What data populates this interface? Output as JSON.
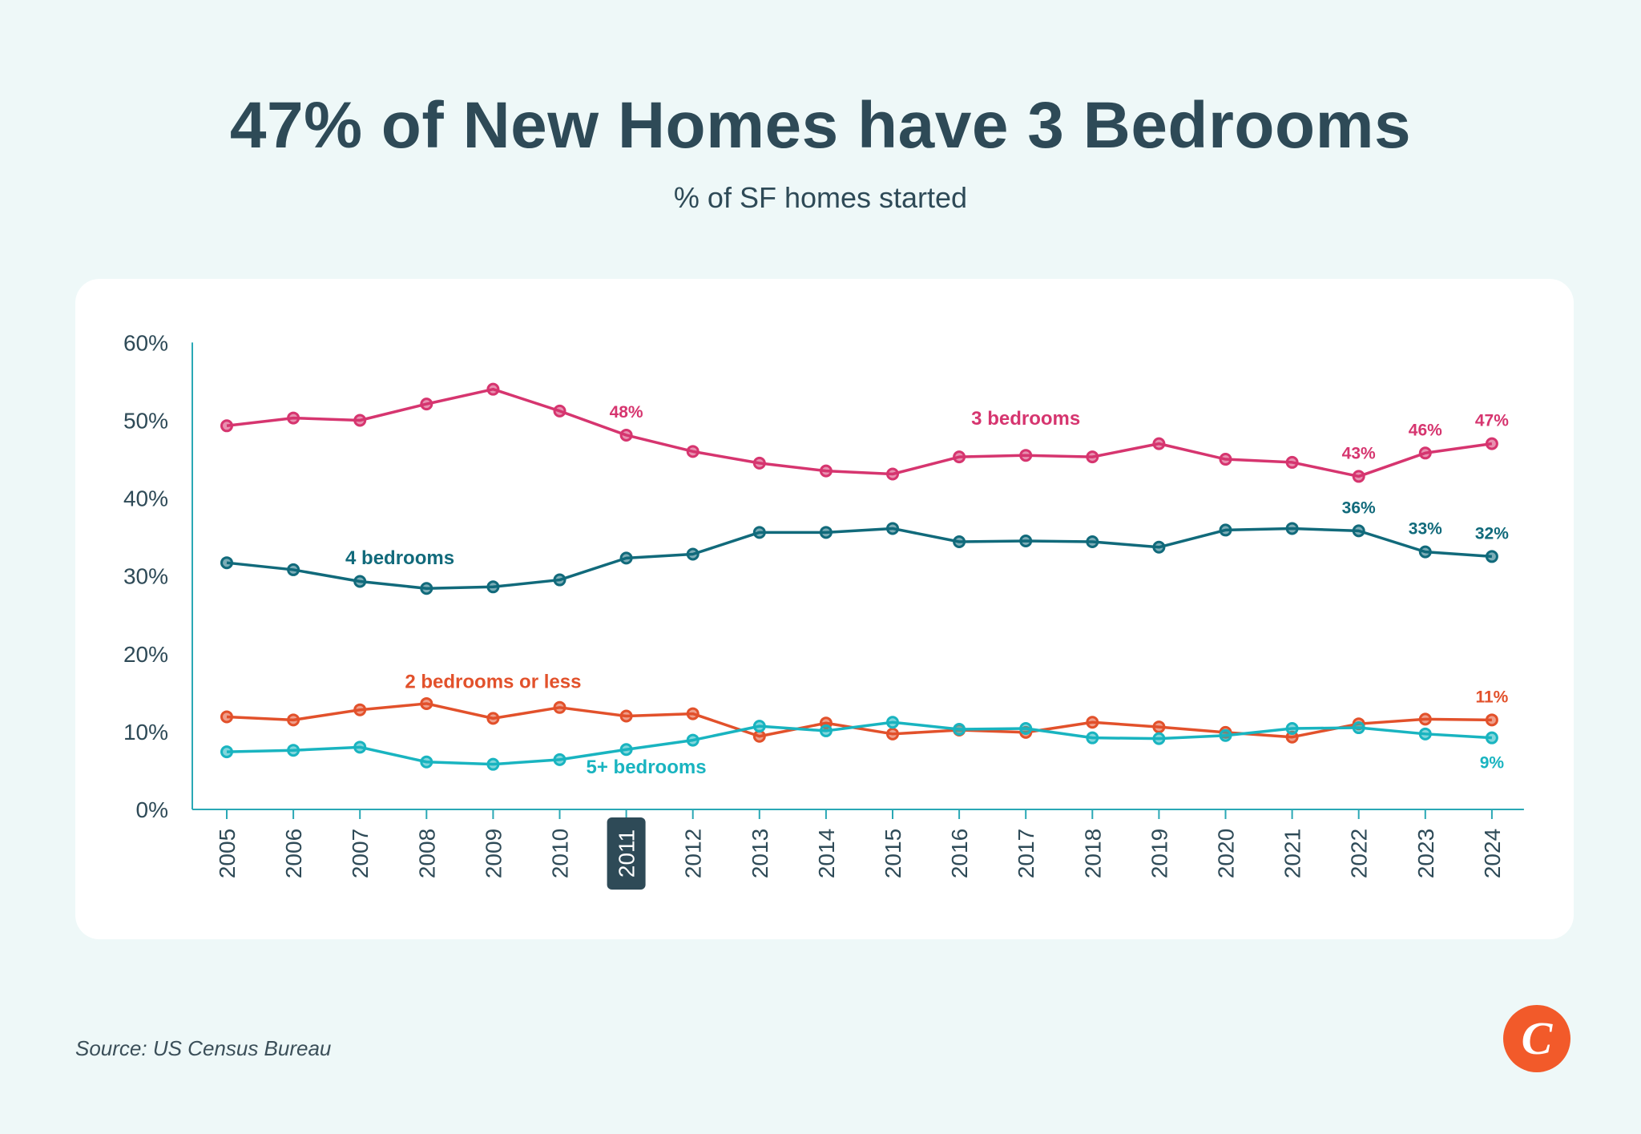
{
  "header": {
    "title": "47% of New Homes have 3 Bedrooms",
    "subtitle": "% of SF homes started"
  },
  "footer": {
    "source": "Source: US Census Bureau",
    "logo_letter": "C"
  },
  "colors": {
    "background": "#eef8f8",
    "card": "#ffffff",
    "axis": "#2aa8b5",
    "text": "#2e4a57",
    "three_bed": "#d6356f",
    "four_bed": "#116a7b",
    "two_bed": "#e2512b",
    "five_bed": "#19b4c0",
    "logo": "#f25a2a"
  },
  "chart_data": {
    "type": "line",
    "title": "47% of New Homes have 3 Bedrooms",
    "subtitle": "% of SF homes started",
    "xlabel": "",
    "ylabel": "",
    "x": [
      "2005",
      "2006",
      "2007",
      "2008",
      "2009",
      "2010",
      "2011",
      "2012",
      "2013",
      "2014",
      "2015",
      "2016",
      "2017",
      "2018",
      "2019",
      "2020",
      "2021",
      "2022",
      "2023",
      "2024"
    ],
    "highlighted_x": "2011",
    "ylim": [
      0,
      60
    ],
    "yticks": [
      "0%",
      "10%",
      "20%",
      "30%",
      "40%",
      "50%",
      "60%"
    ],
    "grid": false,
    "series": [
      {
        "name": "3 bedrooms",
        "color": "#d6356f",
        "values": [
          49.3,
          50.3,
          50.0,
          52.1,
          54.0,
          51.2,
          48.1,
          46.0,
          44.5,
          43.5,
          43.1,
          45.3,
          45.5,
          45.3,
          47.0,
          45.0,
          44.6,
          42.8,
          45.8,
          47.0
        ],
        "labels": [
          {
            "index": 6,
            "text": "48%"
          },
          {
            "index": 17,
            "text": "43%"
          },
          {
            "index": 18,
            "text": "46%"
          },
          {
            "index": 19,
            "text": "47%"
          }
        ]
      },
      {
        "name": "4 bedrooms",
        "color": "#116a7b",
        "values": [
          31.7,
          30.8,
          29.3,
          28.4,
          28.6,
          29.5,
          32.3,
          32.8,
          35.6,
          35.6,
          36.1,
          34.4,
          34.5,
          34.4,
          33.7,
          35.9,
          36.1,
          35.8,
          33.1,
          32.5
        ],
        "labels": [
          {
            "index": 17,
            "text": "36%"
          },
          {
            "index": 18,
            "text": "33%"
          },
          {
            "index": 19,
            "text": "32%"
          }
        ]
      },
      {
        "name": "2 bedrooms or less",
        "color": "#e2512b",
        "values": [
          11.9,
          11.5,
          12.8,
          13.6,
          11.7,
          13.1,
          12.0,
          12.3,
          9.4,
          11.1,
          9.7,
          10.2,
          9.9,
          11.2,
          10.6,
          9.9,
          9.3,
          11.0,
          11.6,
          11.5
        ],
        "labels": [
          {
            "index": 19,
            "text": "11%"
          }
        ]
      },
      {
        "name": "5+ bedrooms",
        "color": "#19b4c0",
        "values": [
          7.4,
          7.6,
          8.0,
          6.1,
          5.8,
          6.4,
          7.7,
          8.9,
          10.7,
          10.1,
          11.2,
          10.3,
          10.4,
          9.2,
          9.1,
          9.5,
          10.4,
          10.5,
          9.7,
          9.2
        ],
        "labels": [
          {
            "index": 19,
            "text": "9%"
          }
        ]
      }
    ]
  }
}
